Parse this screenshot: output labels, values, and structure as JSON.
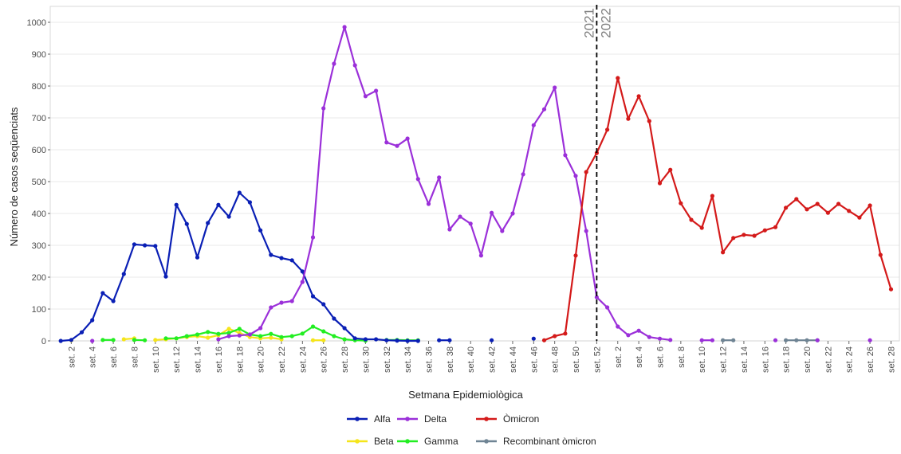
{
  "chart_data": {
    "type": "line",
    "xlabel": "Setmana Epidemiològica",
    "ylabel": "Número de casos seqüenciats",
    "ylim": [
      0,
      1050
    ],
    "yticks": [
      0,
      100,
      200,
      300,
      400,
      500,
      600,
      700,
      800,
      900,
      1000
    ],
    "grid": "horizontal",
    "legend_position": "bottom",
    "x_categories": [
      "set. 1",
      "set. 2",
      "set. 3",
      "set. 4",
      "set. 5",
      "set. 6",
      "set. 7",
      "set. 8",
      "set. 9",
      "set. 10",
      "set. 11",
      "set. 12",
      "set. 13",
      "set. 14",
      "set. 15",
      "set. 16",
      "set. 17",
      "set. 18",
      "set. 19",
      "set. 20",
      "set. 21",
      "set. 22",
      "set. 23",
      "set. 24",
      "set. 25",
      "set. 26",
      "set. 27",
      "set. 28",
      "set. 29",
      "set. 30",
      "set. 31",
      "set. 32",
      "set. 33",
      "set. 34",
      "set. 35",
      "set. 36",
      "set. 37",
      "set. 38",
      "set. 39",
      "set. 40",
      "set. 41",
      "set. 42",
      "set. 43",
      "set. 44",
      "set. 45",
      "set. 46",
      "set. 47",
      "set. 48",
      "set. 49",
      "set. 50",
      "set. 51",
      "set. 52",
      "set. 1",
      "set. 2",
      "set. 3",
      "set. 4",
      "set. 5",
      "set. 6",
      "set. 7",
      "set. 8",
      "set. 9",
      "set. 10",
      "set. 11",
      "set. 12",
      "set. 13",
      "set. 14",
      "set. 15",
      "set. 16",
      "set. 17",
      "set. 18",
      "set. 19",
      "set. 20",
      "set. 21",
      "set. 22",
      "set. 23",
      "set. 24",
      "set. 25",
      "set. 26",
      "set. 27",
      "set. 28"
    ],
    "x_tick_labels": [
      {
        "pos": 2,
        "label": "set. 2"
      },
      {
        "pos": 4,
        "label": "set. 4"
      },
      {
        "pos": 6,
        "label": "set. 6"
      },
      {
        "pos": 8,
        "label": "set. 8"
      },
      {
        "pos": 10,
        "label": "set. 10"
      },
      {
        "pos": 12,
        "label": "set. 12"
      },
      {
        "pos": 14,
        "label": "set. 14"
      },
      {
        "pos": 16,
        "label": "set. 16"
      },
      {
        "pos": 18,
        "label": "set. 18"
      },
      {
        "pos": 20,
        "label": "set. 20"
      },
      {
        "pos": 22,
        "label": "set. 22"
      },
      {
        "pos": 24,
        "label": "set. 24"
      },
      {
        "pos": 26,
        "label": "set. 26"
      },
      {
        "pos": 28,
        "label": "set. 28"
      },
      {
        "pos": 30,
        "label": "set. 30"
      },
      {
        "pos": 32,
        "label": "set. 32"
      },
      {
        "pos": 34,
        "label": "set. 34"
      },
      {
        "pos": 36,
        "label": "set. 36"
      },
      {
        "pos": 38,
        "label": "set. 38"
      },
      {
        "pos": 40,
        "label": "set. 40"
      },
      {
        "pos": 42,
        "label": "set. 42"
      },
      {
        "pos": 44,
        "label": "set. 44"
      },
      {
        "pos": 46,
        "label": "set. 46"
      },
      {
        "pos": 48,
        "label": "set. 48"
      },
      {
        "pos": 50,
        "label": "set. 50"
      },
      {
        "pos": 52,
        "label": "set. 52"
      },
      {
        "pos": 54,
        "label": "set. 2"
      },
      {
        "pos": 56,
        "label": "set. 4"
      },
      {
        "pos": 58,
        "label": "set. 6"
      },
      {
        "pos": 60,
        "label": "set. 8"
      },
      {
        "pos": 62,
        "label": "set. 10"
      },
      {
        "pos": 64,
        "label": "set. 12"
      },
      {
        "pos": 66,
        "label": "set. 14"
      },
      {
        "pos": 68,
        "label": "set. 16"
      },
      {
        "pos": 70,
        "label": "set. 18"
      },
      {
        "pos": 72,
        "label": "set. 20"
      },
      {
        "pos": 74,
        "label": "set. 22"
      },
      {
        "pos": 76,
        "label": "set. 24"
      },
      {
        "pos": 78,
        "label": "set. 26"
      },
      {
        "pos": 80,
        "label": "set. 28"
      }
    ],
    "x_range": [
      0.0,
      80.8
    ],
    "vline": {
      "x": 52,
      "label_left": "2021",
      "label_right": "2022"
    },
    "series": [
      {
        "name": "Alfa",
        "color": "#0a1fb5",
        "points": [
          [
            1,
            0
          ],
          [
            2,
            3
          ],
          [
            3,
            27
          ],
          [
            4,
            65
          ],
          [
            5,
            150
          ],
          [
            6,
            125
          ],
          [
            7,
            210
          ],
          [
            8,
            303
          ],
          [
            9,
            300
          ],
          [
            10,
            298
          ],
          [
            11,
            202
          ],
          [
            12,
            427
          ],
          [
            13,
            367
          ],
          [
            14,
            262
          ],
          [
            15,
            370
          ],
          [
            16,
            427
          ],
          [
            17,
            390
          ],
          [
            18,
            465
          ],
          [
            19,
            435
          ],
          [
            20,
            347
          ],
          [
            21,
            270
          ],
          [
            22,
            260
          ],
          [
            23,
            253
          ],
          [
            24,
            218
          ],
          [
            25,
            140
          ],
          [
            26,
            115
          ],
          [
            27,
            70
          ],
          [
            28,
            40
          ],
          [
            29,
            8
          ],
          [
            30,
            5
          ],
          [
            31,
            5
          ],
          [
            32,
            2
          ],
          [
            33,
            1
          ],
          [
            34,
            0
          ],
          [
            35,
            0
          ],
          [
            37,
            2
          ],
          [
            38,
            2
          ],
          [
            42,
            2
          ],
          [
            46,
            7
          ]
        ]
      },
      {
        "name": "Delta",
        "color": "#9b30d9",
        "points": [
          [
            4,
            0
          ],
          [
            16,
            5
          ],
          [
            17,
            15
          ],
          [
            18,
            17
          ],
          [
            19,
            20
          ],
          [
            20,
            40
          ],
          [
            21,
            105
          ],
          [
            22,
            120
          ],
          [
            23,
            125
          ],
          [
            24,
            185
          ],
          [
            25,
            325
          ],
          [
            26,
            730
          ],
          [
            27,
            870
          ],
          [
            28,
            985
          ],
          [
            29,
            865
          ],
          [
            30,
            768
          ],
          [
            31,
            785
          ],
          [
            32,
            623
          ],
          [
            33,
            612
          ],
          [
            34,
            635
          ],
          [
            35,
            508
          ],
          [
            36,
            430
          ],
          [
            37,
            513
          ],
          [
            38,
            350
          ],
          [
            39,
            390
          ],
          [
            40,
            368
          ],
          [
            41,
            268
          ],
          [
            42,
            402
          ],
          [
            43,
            345
          ],
          [
            44,
            400
          ],
          [
            45,
            523
          ],
          [
            46,
            677
          ],
          [
            47,
            727
          ],
          [
            48,
            795
          ],
          [
            49,
            583
          ],
          [
            50,
            518
          ],
          [
            51,
            345
          ],
          [
            52,
            137
          ],
          [
            53,
            105
          ],
          [
            54,
            45
          ],
          [
            55,
            18
          ],
          [
            56,
            32
          ],
          [
            57,
            12
          ],
          [
            58,
            7
          ],
          [
            59,
            3
          ],
          [
            62,
            2
          ],
          [
            63,
            2
          ],
          [
            69,
            2
          ],
          [
            73,
            2
          ],
          [
            78,
            2
          ]
        ]
      },
      {
        "name": "Òmicron",
        "color": "#d41a1a",
        "points": [
          [
            47,
            2
          ],
          [
            48,
            15
          ],
          [
            49,
            23
          ],
          [
            50,
            268
          ],
          [
            51,
            530
          ],
          [
            52,
            590
          ],
          [
            53,
            663
          ],
          [
            54,
            825
          ],
          [
            55,
            697
          ],
          [
            56,
            768
          ],
          [
            57,
            690
          ],
          [
            58,
            495
          ],
          [
            59,
            537
          ],
          [
            60,
            432
          ],
          [
            61,
            380
          ],
          [
            62,
            355
          ],
          [
            63,
            455
          ],
          [
            64,
            278
          ],
          [
            65,
            323
          ],
          [
            66,
            333
          ],
          [
            67,
            330
          ],
          [
            68,
            347
          ],
          [
            69,
            357
          ],
          [
            70,
            418
          ],
          [
            71,
            445
          ],
          [
            72,
            413
          ],
          [
            73,
            430
          ],
          [
            74,
            402
          ],
          [
            75,
            430
          ],
          [
            76,
            408
          ],
          [
            77,
            387
          ],
          [
            78,
            425
          ],
          [
            79,
            270
          ],
          [
            80,
            162
          ]
        ]
      },
      {
        "name": "Beta",
        "color": "#f5e51b",
        "points": [
          [
            2,
            2
          ],
          [
            7,
            5
          ],
          [
            8,
            8
          ],
          [
            10,
            3
          ],
          [
            11,
            5
          ],
          [
            12,
            8
          ],
          [
            13,
            12
          ],
          [
            14,
            15
          ],
          [
            15,
            10
          ],
          [
            16,
            18
          ],
          [
            17,
            38
          ],
          [
            18,
            25
          ],
          [
            19,
            12
          ],
          [
            20,
            8
          ],
          [
            21,
            10
          ],
          [
            22,
            5
          ],
          [
            25,
            2
          ],
          [
            26,
            2
          ]
        ]
      },
      {
        "name": "Gamma",
        "color": "#22ee22",
        "points": [
          [
            5,
            3
          ],
          [
            6,
            3
          ],
          [
            8,
            3
          ],
          [
            9,
            2
          ],
          [
            11,
            8
          ],
          [
            12,
            8
          ],
          [
            13,
            15
          ],
          [
            14,
            20
          ],
          [
            15,
            28
          ],
          [
            16,
            22
          ],
          [
            17,
            25
          ],
          [
            18,
            38
          ],
          [
            19,
            20
          ],
          [
            20,
            15
          ],
          [
            21,
            22
          ],
          [
            22,
            12
          ],
          [
            23,
            15
          ],
          [
            24,
            23
          ],
          [
            25,
            45
          ],
          [
            26,
            30
          ],
          [
            27,
            15
          ],
          [
            28,
            5
          ],
          [
            29,
            2
          ],
          [
            30,
            1
          ],
          [
            32,
            3
          ],
          [
            33,
            3
          ],
          [
            34,
            2
          ],
          [
            35,
            2
          ]
        ]
      },
      {
        "name": "Recombinant òmicron",
        "color": "#6f8494",
        "points": [
          [
            64,
            2
          ],
          [
            65,
            2
          ],
          [
            70,
            2
          ],
          [
            71,
            2
          ],
          [
            72,
            2
          ],
          [
            73,
            2
          ]
        ]
      }
    ]
  },
  "legend": {
    "items": [
      {
        "name": "Alfa",
        "color": "#0a1fb5"
      },
      {
        "name": "Delta",
        "color": "#9b30d9"
      },
      {
        "name": "Òmicron",
        "color": "#d41a1a"
      },
      {
        "name": "Beta",
        "color": "#f5e51b"
      },
      {
        "name": "Gamma",
        "color": "#22ee22"
      },
      {
        "name": "Recombinant òmicron",
        "color": "#6f8494"
      }
    ]
  }
}
